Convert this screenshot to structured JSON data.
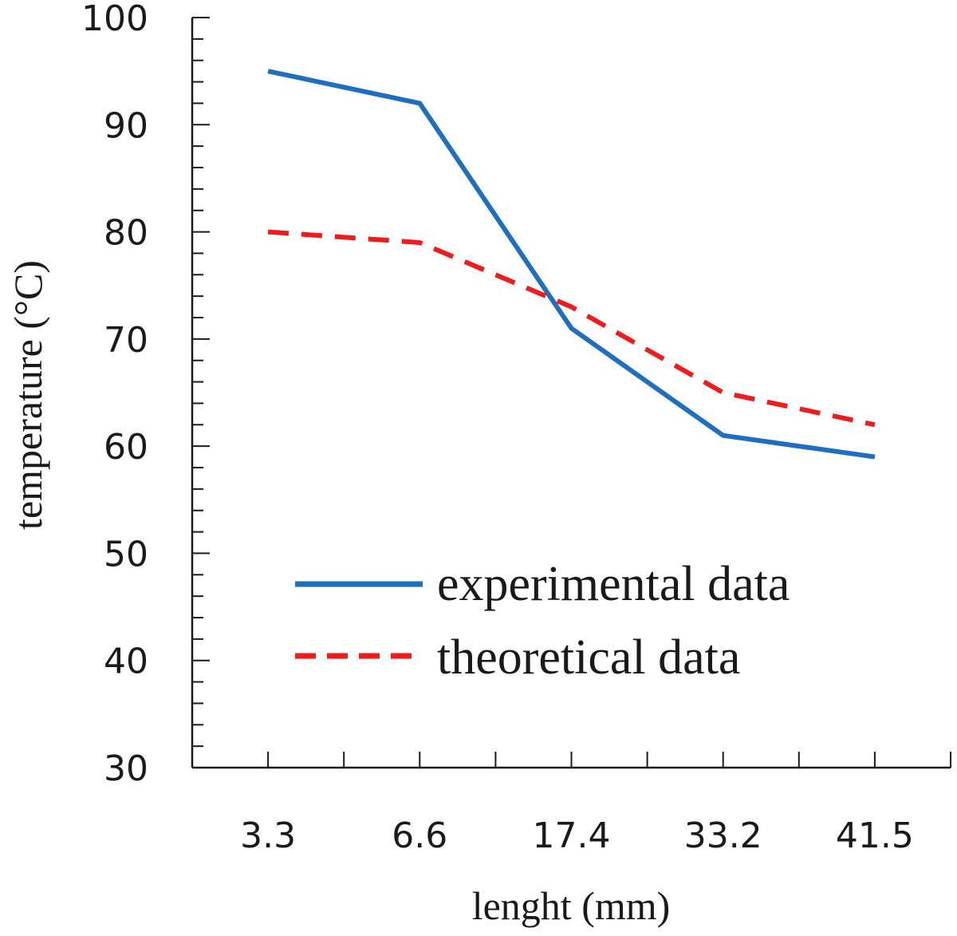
{
  "chart_data": {
    "type": "line",
    "categories": [
      "3.3",
      "6.6",
      "17.4",
      "33.2",
      "41.5"
    ],
    "series": [
      {
        "name": "experimental data",
        "values": [
          95,
          92,
          71,
          61,
          59
        ],
        "color": "#1f6fc0",
        "style": "solid"
      },
      {
        "name": "theoretical data",
        "values": [
          80,
          79,
          73,
          65,
          62
        ],
        "color": "#ee1c1c",
        "style": "dashed"
      }
    ],
    "xlabel": "lenght (mm)",
    "ylabel": "temperature (°C)",
    "ylim": [
      30,
      100
    ],
    "yticks": [
      "30",
      "40",
      "50",
      "60",
      "70",
      "80",
      "90",
      "100"
    ],
    "grid": false,
    "legend_position": "bottom-right"
  }
}
